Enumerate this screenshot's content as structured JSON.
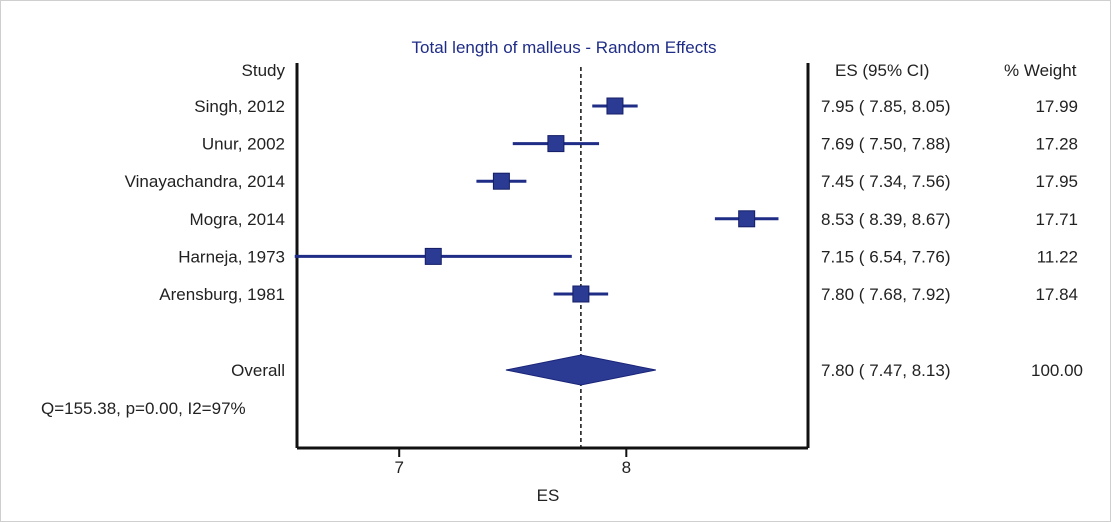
{
  "chart_data": {
    "type": "forest",
    "title": "Total length of malleus - Random Effects",
    "header_study": "Study",
    "header_es": "ES (95% CI)",
    "header_weight": "% Weight",
    "xlabel": "ES",
    "xlim": [
      6.55,
      8.8
    ],
    "xticks": [
      "7",
      "8"
    ],
    "xtick_values": [
      7,
      8
    ],
    "pooled_es": 7.8,
    "studies": [
      {
        "name": "Singh, 2012",
        "es": 7.95,
        "lo": 7.85,
        "hi": 8.05,
        "ci_text": "7.95  ( 7.85, 8.05)",
        "weight": "17.99"
      },
      {
        "name": "Unur, 2002",
        "es": 7.69,
        "lo": 7.5,
        "hi": 7.88,
        "ci_text": "7.69  ( 7.50, 7.88)",
        "weight": "17.28"
      },
      {
        "name": "Vinayachandra, 2014",
        "es": 7.45,
        "lo": 7.34,
        "hi": 7.56,
        "ci_text": "7.45  ( 7.34, 7.56)",
        "weight": "17.95"
      },
      {
        "name": "Mogra, 2014",
        "es": 8.53,
        "lo": 8.39,
        "hi": 8.67,
        "ci_text": "8.53  ( 8.39, 8.67)",
        "weight": "17.71"
      },
      {
        "name": "Harneja, 1973",
        "es": 7.15,
        "lo": 6.54,
        "hi": 7.76,
        "ci_text": "7.15  ( 6.54, 7.76)",
        "weight": "11.22"
      },
      {
        "name": "Arensburg, 1981",
        "es": 7.8,
        "lo": 7.68,
        "hi": 7.92,
        "ci_text": "7.80  ( 7.68, 7.92)",
        "weight": "17.84"
      }
    ],
    "overall": {
      "name": "Overall",
      "es": 7.8,
      "lo": 7.47,
      "hi": 8.13,
      "ci_text": "7.80  ( 7.47, 8.13)",
      "weight": "100.00"
    },
    "heterogeneity": "Q=155.38, p=0.00, I2=97%",
    "colors": {
      "marker": "#2b3a93",
      "line": "#1f2d86",
      "title": "#1f2d86",
      "axis": "#111111"
    }
  }
}
